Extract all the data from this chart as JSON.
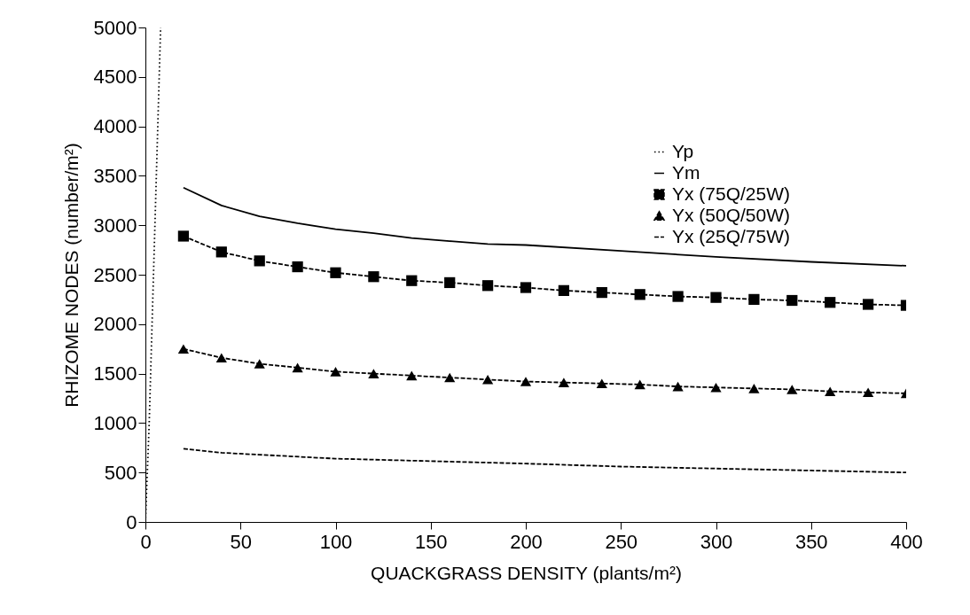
{
  "chart_data": {
    "type": "line",
    "xlabel": "QUACKGRASS DENSITY (plants/m²)",
    "ylabel": "RHIZOME NODES (number/m²)",
    "xlim": [
      0,
      400
    ],
    "xticks": [
      0,
      50,
      100,
      150,
      200,
      250,
      300,
      350,
      400
    ],
    "ylim": [
      0,
      5000
    ],
    "yticks": [
      0,
      500,
      1000,
      1500,
      2000,
      2500,
      3000,
      3500,
      4000,
      4500,
      5000
    ],
    "grid": false,
    "legend": "top right",
    "series": [
      {
        "name": "Yp",
        "color": "#000000",
        "line_style": "dotted",
        "marker": "none",
        "x": [
          0,
          2,
          5,
          8
        ],
        "values": [
          0,
          1000,
          3000,
          5000
        ]
      },
      {
        "name": "Ym",
        "color": "#000000",
        "line_style": "solid",
        "marker": "none",
        "x": [
          20,
          40,
          60,
          80,
          100,
          120,
          140,
          160,
          180,
          200,
          250,
          300,
          350,
          400
        ],
        "values": [
          3380,
          3200,
          3090,
          3020,
          2960,
          2920,
          2870,
          2840,
          2810,
          2800,
          2740,
          2680,
          2630,
          2590
        ]
      },
      {
        "name": "Yx (75Q/25W)",
        "color": "#000000",
        "line_style": "dashed",
        "marker": "square",
        "x": [
          20,
          40,
          60,
          80,
          100,
          120,
          140,
          160,
          180,
          200,
          220,
          240,
          260,
          280,
          300,
          320,
          340,
          360,
          380,
          400
        ],
        "values": [
          2890,
          2730,
          2640,
          2580,
          2520,
          2480,
          2440,
          2420,
          2390,
          2370,
          2340,
          2320,
          2300,
          2280,
          2270,
          2250,
          2240,
          2220,
          2200,
          2190
        ]
      },
      {
        "name": "Yx (50Q/50W)",
        "color": "#000000",
        "line_style": "dashed",
        "marker": "triangle",
        "x": [
          20,
          40,
          60,
          80,
          100,
          120,
          140,
          160,
          180,
          200,
          220,
          240,
          260,
          280,
          300,
          320,
          340,
          360,
          380,
          400
        ],
        "values": [
          1750,
          1660,
          1600,
          1560,
          1520,
          1500,
          1480,
          1460,
          1440,
          1420,
          1410,
          1400,
          1390,
          1370,
          1360,
          1350,
          1340,
          1320,
          1310,
          1300
        ]
      },
      {
        "name": "Yx (25Q/75W)",
        "color": "#000000",
        "line_style": "dashed",
        "marker": "none",
        "x": [
          20,
          40,
          60,
          100,
          140,
          180,
          200,
          250,
          300,
          350,
          400
        ],
        "values": [
          740,
          700,
          680,
          640,
          620,
          600,
          590,
          560,
          540,
          520,
          500
        ]
      }
    ]
  }
}
